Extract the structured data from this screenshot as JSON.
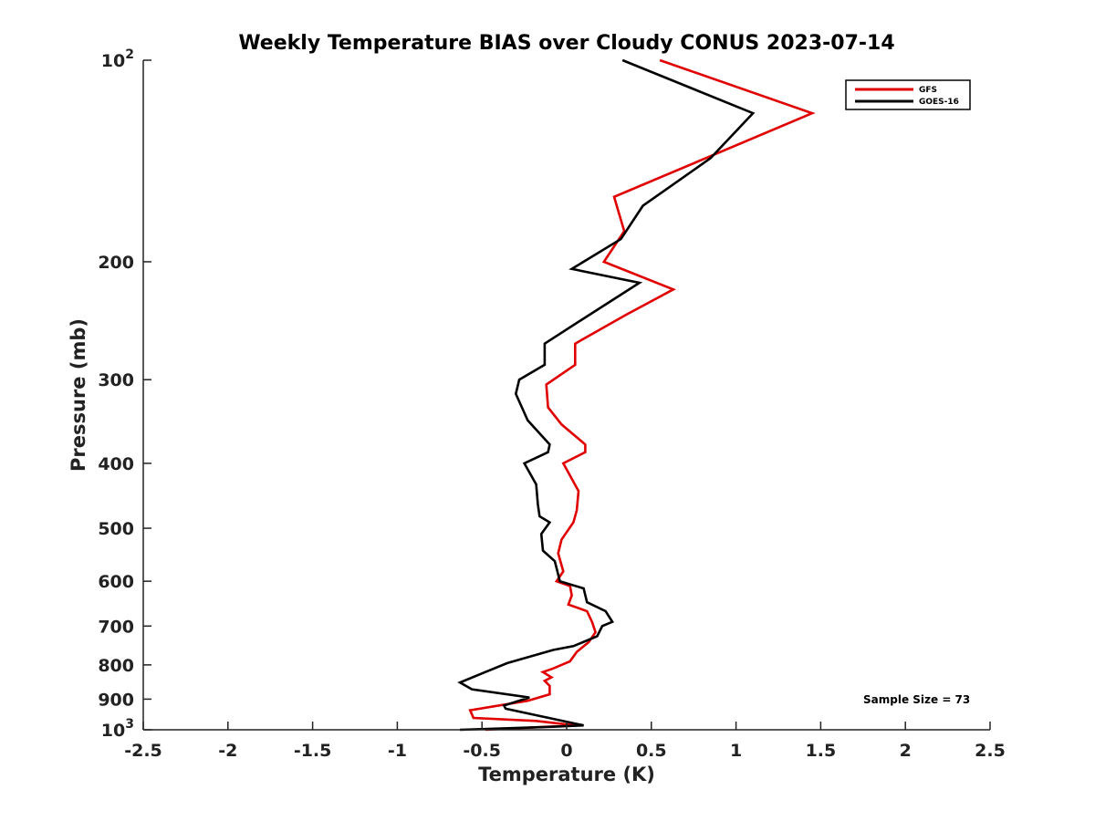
{
  "chart_data": {
    "type": "line",
    "title": "Weekly Temperature BIAS over Cloudy CONUS 2023-07-14",
    "xlabel": "Temperature (K)",
    "ylabel": "Pressure (mb)",
    "xlim": [
      -2.5,
      2.5
    ],
    "ylim": [
      100,
      1000
    ],
    "yscale": "log",
    "y_reversed": true,
    "x_ticks": [
      -2.5,
      -2,
      -1.5,
      -1,
      -0.5,
      0,
      0.5,
      1,
      1.5,
      2,
      2.5
    ],
    "x_tick_labels": [
      "-2.5",
      "-2",
      "-1.5",
      "-1",
      "-0.5",
      "0",
      "0.5",
      "1",
      "1.5",
      "2",
      "2.5"
    ],
    "y_ticks": [
      {
        "value": 100,
        "label": "10",
        "sup": "2"
      },
      {
        "value": 200,
        "label": "200",
        "sup": ""
      },
      {
        "value": 300,
        "label": "300",
        "sup": ""
      },
      {
        "value": 400,
        "label": "400",
        "sup": ""
      },
      {
        "value": 500,
        "label": "500",
        "sup": ""
      },
      {
        "value": 600,
        "label": "600",
        "sup": ""
      },
      {
        "value": 700,
        "label": "700",
        "sup": ""
      },
      {
        "value": 800,
        "label": "800",
        "sup": ""
      },
      {
        "value": 900,
        "label": "900",
        "sup": ""
      },
      {
        "value": 1000,
        "label": "10",
        "sup": "3"
      }
    ],
    "legend_position": "top-right",
    "annotation": "Sample Size = 73",
    "series": [
      {
        "name": "GFS",
        "color": "#e00000",
        "points": [
          [
            0.55,
            100
          ],
          [
            1.45,
            120
          ],
          [
            0.28,
            160
          ],
          [
            0.34,
            180
          ],
          [
            0.22,
            200
          ],
          [
            0.63,
            220
          ],
          [
            0.35,
            240
          ],
          [
            0.05,
            265
          ],
          [
            0.05,
            285
          ],
          [
            -0.12,
            305
          ],
          [
            -0.11,
            330
          ],
          [
            -0.03,
            350
          ],
          [
            0.11,
            375
          ],
          [
            0.11,
            385
          ],
          [
            -0.02,
            400
          ],
          [
            0.07,
            440
          ],
          [
            0.06,
            470
          ],
          [
            0.04,
            490
          ],
          [
            -0.03,
            520
          ],
          [
            -0.05,
            545
          ],
          [
            -0.02,
            580
          ],
          [
            -0.06,
            600
          ],
          [
            0.02,
            610
          ],
          [
            0.03,
            630
          ],
          [
            0.01,
            650
          ],
          [
            0.12,
            665
          ],
          [
            0.15,
            690
          ],
          [
            0.17,
            715
          ],
          [
            0.13,
            740
          ],
          [
            0.06,
            765
          ],
          [
            0.02,
            790
          ],
          [
            -0.08,
            810
          ],
          [
            -0.14,
            820
          ],
          [
            -0.09,
            835
          ],
          [
            -0.13,
            845
          ],
          [
            -0.1,
            860
          ],
          [
            -0.1,
            885
          ],
          [
            -0.23,
            905
          ],
          [
            -0.57,
            935
          ],
          [
            -0.55,
            960
          ],
          [
            -0.18,
            970
          ],
          [
            0.05,
            985
          ],
          [
            -0.48,
            1000
          ]
        ]
      },
      {
        "name": "GOES-16",
        "color": "#000000",
        "points": [
          [
            0.33,
            100
          ],
          [
            1.1,
            120
          ],
          [
            0.85,
            140
          ],
          [
            0.45,
            165
          ],
          [
            0.32,
            185
          ],
          [
            0.03,
            205
          ],
          [
            0.43,
            215
          ],
          [
            0.08,
            245
          ],
          [
            -0.13,
            265
          ],
          [
            -0.13,
            285
          ],
          [
            -0.28,
            300
          ],
          [
            -0.3,
            315
          ],
          [
            -0.23,
            345
          ],
          [
            -0.1,
            375
          ],
          [
            -0.11,
            385
          ],
          [
            -0.25,
            400
          ],
          [
            -0.18,
            430
          ],
          [
            -0.17,
            460
          ],
          [
            -0.16,
            480
          ],
          [
            -0.1,
            490
          ],
          [
            -0.15,
            510
          ],
          [
            -0.14,
            540
          ],
          [
            -0.07,
            560
          ],
          [
            -0.04,
            600
          ],
          [
            0.1,
            615
          ],
          [
            0.12,
            645
          ],
          [
            0.23,
            665
          ],
          [
            0.27,
            690
          ],
          [
            0.21,
            700
          ],
          [
            0.18,
            725
          ],
          [
            0.04,
            750
          ],
          [
            -0.08,
            760
          ],
          [
            -0.35,
            795
          ],
          [
            -0.48,
            820
          ],
          [
            -0.63,
            850
          ],
          [
            -0.56,
            870
          ],
          [
            -0.22,
            895
          ],
          [
            -0.37,
            920
          ],
          [
            -0.36,
            930
          ],
          [
            0.1,
            985
          ],
          [
            -0.1,
            990
          ],
          [
            -0.63,
            1000
          ]
        ]
      }
    ]
  }
}
